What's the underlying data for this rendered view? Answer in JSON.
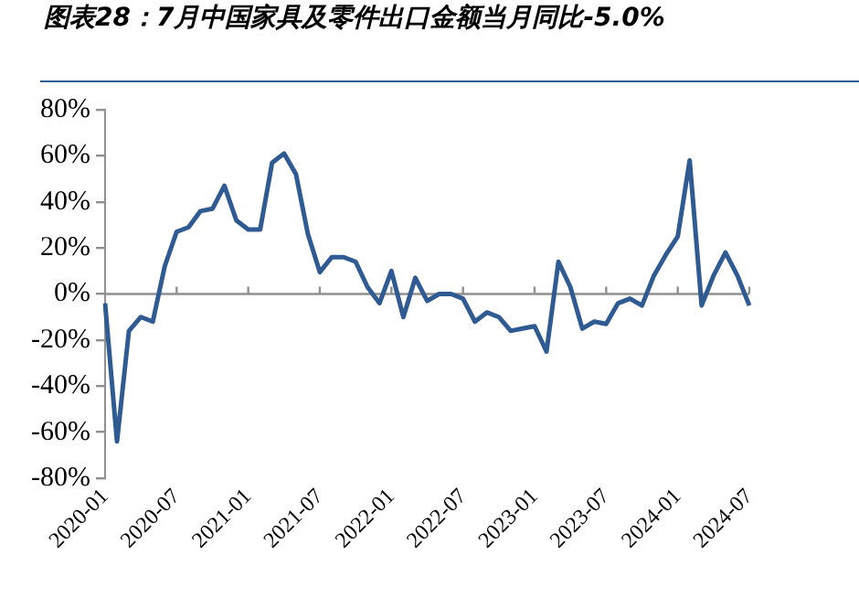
{
  "chart_data": {
    "type": "line",
    "title": "图表28：7月中国家具及零件出口金额当月同比-5.0%",
    "categories": [
      "2020-01",
      null,
      null,
      null,
      null,
      null,
      "2020-07",
      null,
      null,
      null,
      null,
      null,
      "2021-01",
      null,
      null,
      null,
      null,
      null,
      "2021-07",
      null,
      null,
      null,
      null,
      null,
      "2022-01",
      null,
      null,
      null,
      null,
      null,
      "2022-07",
      null,
      null,
      null,
      null,
      null,
      "2023-01",
      null,
      null,
      null,
      null,
      null,
      "2023-07",
      null,
      null,
      null,
      null,
      null,
      "2024-01",
      null,
      null,
      null,
      null,
      null,
      "2024-07"
    ],
    "series": [
      {
        "color": "#2f5b92",
        "values": [
          -4,
          -64,
          -16,
          -10,
          -12,
          12,
          27,
          29,
          36,
          37,
          47,
          32,
          28,
          28,
          57,
          61,
          52,
          26,
          9.5,
          16,
          16,
          14,
          3,
          -4,
          10,
          -10,
          7,
          -3,
          0,
          0,
          -2,
          -12,
          -8,
          -10,
          -16,
          -15,
          -14,
          -25,
          14,
          3,
          -15,
          -12,
          -13,
          -4,
          -2,
          -5,
          8,
          17,
          25,
          58,
          -5,
          8,
          18,
          8,
          -5
        ]
      }
    ],
    "ylim": [
      -80,
      80
    ],
    "yticks": [
      {
        "value": -80,
        "label": "-80%"
      },
      {
        "value": -60,
        "label": "-60%"
      },
      {
        "value": -40,
        "label": "-40%"
      },
      {
        "value": -20,
        "label": "-20%"
      },
      {
        "value": 0,
        "label": "0%"
      },
      {
        "value": 20,
        "label": "20%"
      },
      {
        "value": 40,
        "label": "40%"
      },
      {
        "value": 60,
        "label": "60%"
      },
      {
        "value": 80,
        "label": "80%"
      }
    ],
    "ref_lines": [
      {
        "axis": "y",
        "value": 0,
        "color": "#909090"
      }
    ],
    "grid": false,
    "legend": false,
    "marker": "none",
    "line_style": "solid"
  }
}
